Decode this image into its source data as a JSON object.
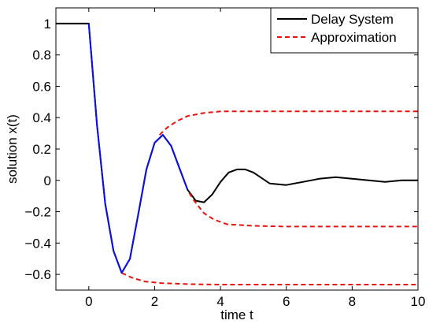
{
  "chart_data": {
    "type": "line",
    "title": "",
    "xlabel": "time t",
    "ylabel": "solution x(t)",
    "xlim": [
      -1,
      10
    ],
    "ylim": [
      -0.7,
      1.1
    ],
    "x_ticks": [
      0,
      2,
      4,
      6,
      8,
      10
    ],
    "y_ticks": [
      -0.6,
      -0.4,
      -0.2,
      0,
      0.2,
      0.4,
      0.6,
      0.8,
      1
    ],
    "x_tick_labels": [
      "0",
      "2",
      "4",
      "6",
      "8",
      "10"
    ],
    "y_tick_labels": [
      "−0.6",
      "−0.4",
      "−0.2",
      "0",
      "0.2",
      "0.4",
      "0.6",
      "0.8",
      "1"
    ],
    "grid": false,
    "legend_position": "top-right",
    "legend": [
      "Delay System",
      "Approximation"
    ],
    "colors": {
      "delay": "#000000",
      "approx": "#e8120c",
      "segment": "#0b10e6"
    },
    "series": [
      {
        "name": "Delay System",
        "style": "solid",
        "x": [
          -1,
          -0.5,
          0,
          0.25,
          0.5,
          0.75,
          1.0,
          1.25,
          1.5,
          1.75,
          2.0,
          2.25,
          2.5,
          2.75,
          3.0,
          3.25,
          3.5,
          3.75,
          4.0,
          4.25,
          4.5,
          4.75,
          5.0,
          5.5,
          6.0,
          6.5,
          7.0,
          7.5,
          8.0,
          8.5,
          9.0,
          9.5,
          10.0
        ],
        "y": [
          1,
          1,
          1,
          0.35,
          -0.15,
          -0.45,
          -0.59,
          -0.5,
          -0.22,
          0.07,
          0.24,
          0.29,
          0.22,
          0.08,
          -0.06,
          -0.13,
          -0.14,
          -0.09,
          -0.01,
          0.05,
          0.07,
          0.07,
          0.05,
          -0.02,
          -0.03,
          -0.01,
          0.01,
          0.02,
          0.01,
          0.0,
          -0.01,
          0.0,
          0.0
        ]
      },
      {
        "name": "Approximation",
        "style": "dashed",
        "segments": [
          {
            "x": [
              2.15,
              2.4,
              2.7,
              3.0,
              3.5,
              4.0,
              5.0,
              6.0,
              7.0,
              8.0,
              10.0
            ],
            "y": [
              0.29,
              0.34,
              0.38,
              0.41,
              0.43,
              0.44,
              0.44,
              0.44,
              0.44,
              0.44,
              0.44
            ]
          },
          {
            "x": [
              3.05,
              3.2,
              3.5,
              3.8,
              4.2,
              5.0,
              6.0,
              7.0,
              8.0,
              10.0
            ],
            "y": [
              -0.08,
              -0.13,
              -0.21,
              -0.25,
              -0.28,
              -0.29,
              -0.295,
              -0.295,
              -0.295,
              -0.295
            ]
          },
          {
            "x": [
              1.0,
              1.3,
              1.7,
              2.2,
              3.0,
              4.0,
              5.0,
              6.0,
              8.0,
              10.0
            ],
            "y": [
              -0.59,
              -0.62,
              -0.645,
              -0.655,
              -0.662,
              -0.665,
              -0.665,
              -0.665,
              -0.665,
              -0.665
            ]
          }
        ]
      },
      {
        "style": "solid",
        "color_key": "segment",
        "x": [
          0,
          0.25,
          0.5,
          0.75,
          1.0,
          1.25,
          1.5,
          1.75,
          2.0,
          2.25,
          2.5,
          2.75,
          3.0
        ],
        "y": [
          1,
          0.35,
          -0.15,
          -0.45,
          -0.59,
          -0.5,
          -0.22,
          0.07,
          0.24,
          0.29,
          0.22,
          0.08,
          -0.06
        ]
      }
    ]
  }
}
